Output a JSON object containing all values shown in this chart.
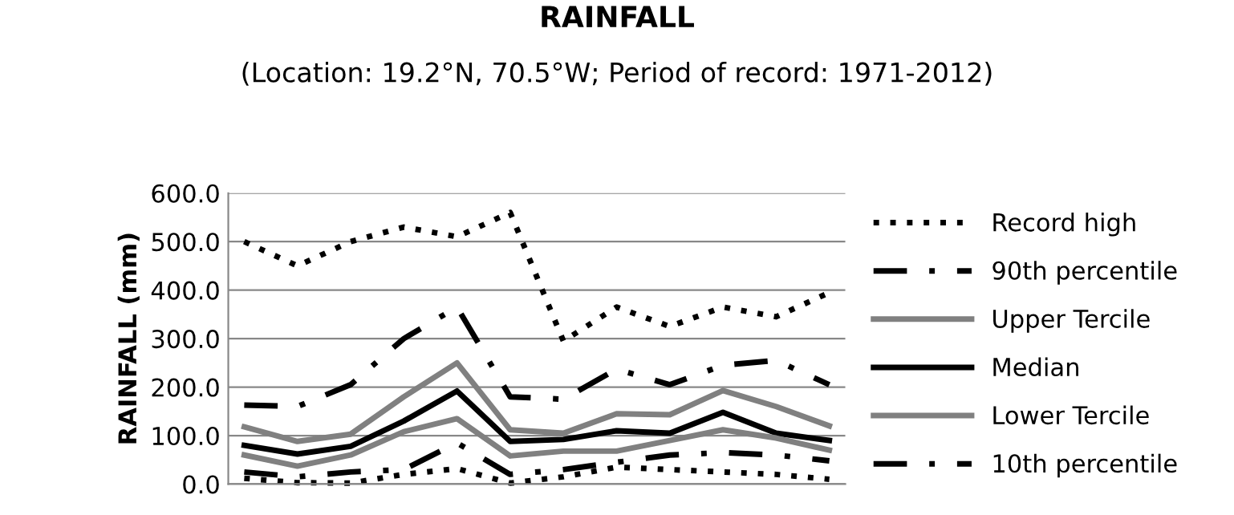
{
  "chart_data": {
    "type": "line",
    "title": "RAINFALL",
    "subtitle": "(Location: 19.2°N, 70.5°W; Period of record: 1971-2012)",
    "ylabel": "RAINFALL (mm)",
    "categories": [
      null,
      null,
      null,
      null,
      null,
      null,
      null,
      null,
      null,
      null,
      null,
      null
    ],
    "ylim": [
      0,
      600
    ],
    "yticks": [
      {
        "value": 0,
        "label": "0.0"
      },
      {
        "value": 100,
        "label": "100.0"
      },
      {
        "value": 200,
        "label": "200.0"
      },
      {
        "value": 300,
        "label": "300.0"
      },
      {
        "value": 400,
        "label": "400.0"
      },
      {
        "value": 500,
        "label": "500.0"
      },
      {
        "value": 600,
        "label": "600.0"
      }
    ],
    "grid": "y",
    "legend": "right",
    "marker": "none",
    "series": [
      {
        "name": "Record high",
        "color": "#000000",
        "line_style": "dotted",
        "values": [
          500,
          450,
          500,
          530,
          510,
          560,
          295,
          365,
          325,
          365,
          345,
          395
        ]
      },
      {
        "name": "90th percentile",
        "color": "#000000",
        "line_style": "dashdot",
        "values": [
          163,
          160,
          205,
          300,
          365,
          180,
          175,
          237,
          205,
          245,
          255,
          205
        ]
      },
      {
        "name": "Upper Tercile",
        "color": "#808080",
        "line_style": "solid",
        "values": [
          118,
          88,
          103,
          180,
          250,
          112,
          105,
          145,
          143,
          193,
          160,
          120
        ]
      },
      {
        "name": "Median",
        "color": "#000000",
        "line_style": "solid",
        "values": [
          80,
          62,
          78,
          130,
          192,
          88,
          92,
          110,
          105,
          148,
          105,
          90
        ]
      },
      {
        "name": "Lower Tercile",
        "color": "#808080",
        "line_style": "solid",
        "values": [
          60,
          37,
          60,
          108,
          135,
          58,
          68,
          68,
          90,
          112,
          95,
          70
        ]
      },
      {
        "name": "10th percentile",
        "color": "#000000",
        "line_style": "dashdot",
        "values": [
          25,
          15,
          25,
          30,
          85,
          20,
          30,
          45,
          60,
          65,
          60,
          48
        ]
      },
      {
        "color": "#000000",
        "line_style": "dotted",
        "values": [
          12,
          3,
          2,
          20,
          32,
          2,
          15,
          35,
          30,
          25,
          20,
          10
        ]
      }
    ]
  }
}
